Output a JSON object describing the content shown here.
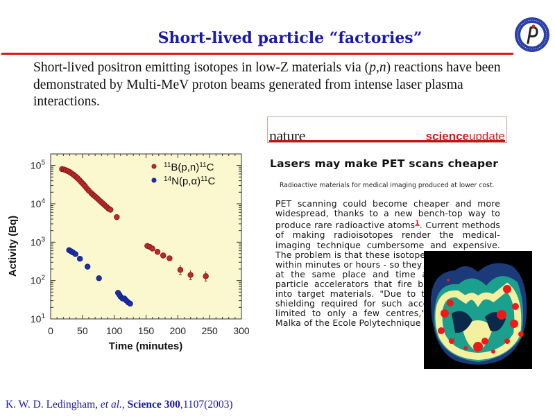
{
  "slide": {
    "title": "Short-lived particle “factories”",
    "intro_part1": "Short-lived positron emitting isotopes in low-Z materials via (",
    "intro_p": "p",
    "intro_comma": ",",
    "intro_n": "n",
    "intro_part2": ") reactions have been demonstrated by Multi-MeV proton beams generated from intense laser plasma interactions.",
    "logo_name": "Institute of Physics CAS"
  },
  "news": {
    "brand_left": "nature",
    "brand_right_bold": "science",
    "brand_right_light": "update",
    "headline": "Lasers may make PET scans cheaper",
    "subhead": "Radioactive materials for medical imaging produced at lower cost.",
    "body_part1": "PET scanning could become cheaper and more widespread, thanks to a new bench-top way to produce rare radioactive atoms",
    "body_ref": "1",
    "body_part2": ". Current methods of making radioisotopes render the medical-imaging technique cumbersome and expensive. The problem is that these isotopes decay quickly - within minutes or hours - so they have to be made at the same place and time as the scan, by particle accelerators that fire beams of protons into target materials. \"Due to the size and the shielding required for such accelerators, PET is limited to only a few centres,\" explains Victor Malka of the Ecole Polytechnique in Palaiseau",
    "image_alt": "PET brain scan"
  },
  "citation": {
    "authors": "K. W. D. Ledingham, ",
    "etal": "et al.",
    "sep": ", ",
    "journal": "Science 300",
    "pages": ",1107(2003)"
  },
  "colors": {
    "title": "#1a1aa8",
    "rule": "#e01515",
    "plot_bg": "#fbf8cf",
    "series_B": "#c0282a",
    "series_N": "#1c2fb0"
  },
  "chart_data": {
    "type": "scatter",
    "title": "",
    "xlabel": "Time (minutes)",
    "ylabel": "Activity (Bq)",
    "xlim": [
      0,
      300
    ],
    "ylim_log10": [
      1,
      5.3
    ],
    "y_scale": "log",
    "x_ticks": [
      0,
      50,
      100,
      150,
      200,
      250,
      300
    ],
    "x_tick_labels": [
      "0",
      "50",
      "100",
      "150",
      "200",
      "250",
      "300"
    ],
    "y_ticks_log10": [
      1,
      2,
      3,
      4,
      5
    ],
    "y_tick_base": "10",
    "y_tick_exps": [
      "1",
      "2",
      "3",
      "4",
      "5"
    ],
    "legend_position": "top-right",
    "series": [
      {
        "name": "11B(p,n)11C",
        "legend": {
          "pre": "11",
          "a": "B(p,n)",
          "post": "11",
          "b": "C"
        },
        "color": "#c0282a",
        "points": [
          [
            18,
            80000
          ],
          [
            21,
            78000
          ],
          [
            24,
            75000
          ],
          [
            27,
            71000
          ],
          [
            30,
            67000
          ],
          [
            33,
            62000
          ],
          [
            36,
            57000
          ],
          [
            39,
            52000
          ],
          [
            42,
            47000
          ],
          [
            45,
            42000
          ],
          [
            48,
            37000
          ],
          [
            51,
            33000
          ],
          [
            54,
            29000
          ],
          [
            57,
            25000
          ],
          [
            60,
            22000
          ],
          [
            64,
            19000
          ],
          [
            67,
            17000
          ],
          [
            70,
            15500
          ],
          [
            73,
            14000
          ],
          [
            76,
            12500
          ],
          [
            79,
            11300
          ],
          [
            82,
            10200
          ],
          [
            85,
            9200
          ],
          [
            88,
            8300
          ],
          [
            91,
            7500
          ],
          [
            94,
            7000
          ],
          [
            104,
            4500
          ],
          [
            152,
            800
          ],
          [
            156,
            750
          ],
          [
            160,
            680
          ],
          [
            168,
            560
          ],
          [
            177,
            450
          ],
          [
            187,
            380
          ],
          [
            204,
            190
          ],
          [
            220,
            140
          ],
          [
            244,
            130
          ]
        ],
        "error_bars_from_x": 200
      },
      {
        "name": "14N(p,α)11C",
        "legend": {
          "pre": "14",
          "a": "N(p,α)",
          "post": "11",
          "b": "C"
        },
        "color": "#1c2fb0",
        "points": [
          [
            29,
            620
          ],
          [
            32,
            580
          ],
          [
            35,
            540
          ],
          [
            39,
            490
          ],
          [
            46,
            370
          ],
          [
            58,
            230
          ],
          [
            76,
            115
          ],
          [
            106,
            48
          ],
          [
            108,
            43
          ],
          [
            110,
            38
          ],
          [
            113,
            34
          ],
          [
            116,
            34
          ],
          [
            119,
            30
          ],
          [
            122,
            27
          ],
          [
            125,
            25
          ]
        ]
      }
    ]
  }
}
